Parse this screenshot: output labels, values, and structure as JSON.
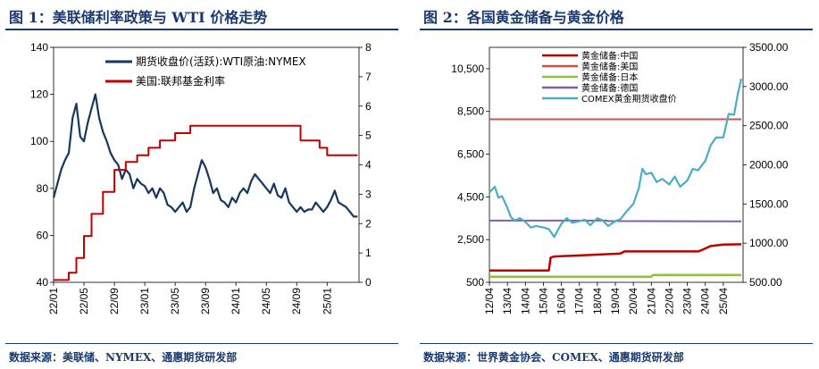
{
  "fig1": {
    "title": "图 1：美联储利率政策与 WTI 价格走势",
    "source": "数据来源：美联储、NYMEX、通惠期货研发部"
  },
  "fig2": {
    "title": "图 2：各国黄金储备与黄金价格",
    "source": "数据来源：世界黄金协会、COMEX、通惠期货研发部"
  },
  "chart_data": [
    {
      "type": "line",
      "title": "图 1：美联储利率政策与 WTI 价格走势",
      "x_tick_labels": [
        "22/01",
        "22/05",
        "22/09",
        "23/01",
        "23/05",
        "23/09",
        "24/01",
        "24/05",
        "24/09",
        "25/01"
      ],
      "y_left": {
        "range": [
          40,
          140
        ],
        "ticks": [
          40,
          60,
          80,
          100,
          120,
          140
        ]
      },
      "y_right": {
        "range": [
          0,
          8
        ],
        "ticks": [
          0,
          1,
          2,
          3,
          4,
          5,
          6,
          7,
          8
        ]
      },
      "legend_position": "top-right",
      "grid": false,
      "series": [
        {
          "name": "期货收盘价(活跃):WTI原油:NYMEX",
          "axis": "left",
          "color": "#17375e",
          "x": [
            0,
            0.5,
            1,
            1.5,
            2,
            2.5,
            3,
            3.5,
            4,
            4.5,
            5,
            5.5,
            6,
            6.5,
            7,
            7.5,
            8,
            8.5,
            9,
            9.5,
            10,
            10.5,
            11,
            11.5,
            12,
            12.5,
            13,
            13.5,
            14,
            14.5,
            15,
            15.5,
            16,
            16.5,
            17,
            17.5,
            18,
            18.5,
            19,
            19.5,
            20,
            20.5,
            21,
            21.5,
            22,
            22.5,
            23,
            23.5,
            24,
            24.5,
            25,
            25.5,
            26,
            26.5,
            27,
            27.5,
            28,
            28.5,
            29,
            29.5,
            30,
            30.5,
            31,
            31.5,
            32,
            32.5,
            33,
            33.5,
            34,
            34.5,
            35,
            35.5,
            36,
            36.5,
            37,
            37.5,
            38,
            38.5,
            39,
            39.5,
            40
          ],
          "values": [
            76,
            82,
            88,
            92,
            95,
            110,
            116,
            102,
            100,
            108,
            114,
            120,
            110,
            104,
            100,
            95,
            92,
            90,
            84,
            88,
            86,
            80,
            84,
            82,
            81,
            78,
            80,
            76,
            80,
            78,
            73,
            72,
            70,
            72,
            74,
            70,
            72,
            80,
            86,
            92,
            89,
            84,
            78,
            80,
            75,
            74,
            72,
            76,
            74,
            78,
            80,
            78,
            83,
            86,
            84,
            82,
            80,
            78,
            82,
            77,
            76,
            80,
            74,
            72,
            70,
            72,
            70,
            71,
            71,
            74,
            72,
            70,
            72,
            75,
            79,
            74,
            73,
            72,
            70,
            68,
            68
          ]
        },
        {
          "name": "美国:联邦基金利率",
          "axis": "right",
          "color": "#c00000",
          "x": [
            0,
            2.0,
            2.0,
            3.0,
            3.0,
            4.0,
            4.0,
            5.0,
            5.0,
            6.5,
            6.5,
            8.0,
            8.0,
            9.5,
            9.5,
            11.0,
            11.0,
            12.5,
            12.5,
            14.0,
            14.0,
            16.0,
            16.0,
            18.0,
            18.0,
            20.5,
            20.5,
            25.5,
            25.5,
            26.0,
            26.0,
            27.0,
            27.0,
            28.0,
            28.0,
            30.0,
            30.0,
            31.5,
            31.5,
            32.5,
            32.5,
            35.0,
            35.0,
            36.0,
            36.0,
            40.0
          ],
          "values": [
            0.08,
            0.08,
            0.33,
            0.33,
            0.83,
            0.83,
            1.58,
            1.58,
            2.33,
            2.33,
            3.08,
            3.08,
            3.83,
            3.83,
            4.1,
            4.1,
            4.33,
            4.33,
            4.58,
            4.58,
            4.83,
            4.83,
            5.08,
            5.08,
            5.33,
            5.33,
            5.33,
            5.33,
            5.33,
            5.33,
            5.33,
            5.33,
            5.33,
            5.33,
            5.33,
            5.33,
            5.33,
            5.33,
            5.33,
            5.33,
            4.83,
            4.83,
            4.58,
            4.58,
            4.33,
            4.33
          ]
        }
      ]
    },
    {
      "type": "line",
      "title": "图 2：各国黄金储备与黄金价格",
      "x_tick_labels": [
        "12/04",
        "13/04",
        "14/04",
        "15/04",
        "16/04",
        "17/04",
        "18/04",
        "19/04",
        "20/04",
        "21/04",
        "22/04",
        "23/04",
        "24/04",
        "25/04"
      ],
      "y_left": {
        "range": [
          500,
          11500
        ],
        "ticks_labels": [
          "500",
          "2,500",
          "4,500",
          "6,500",
          "8,500",
          "10,500"
        ]
      },
      "y_right": {
        "range": [
          500,
          3500
        ],
        "ticks_labels": [
          "500.00",
          "1000.00",
          "1500.00",
          "2000.00",
          "2500.00",
          "3000.00",
          "3500.00"
        ]
      },
      "legend_position": "top-left",
      "grid": false,
      "series": [
        {
          "name": "黄金储备:中国",
          "axis": "left",
          "color": "#c00000",
          "x": [
            0,
            3.3,
            3.4,
            3.6,
            7.2,
            7.3,
            7.5,
            11.6,
            11.8,
            12.3,
            13.0,
            14.0
          ],
          "values": [
            1054,
            1054,
            1658,
            1708,
            1843,
            1854,
            1948,
            1948,
            2011,
            2200,
            2264,
            2280
          ]
        },
        {
          "name": "黄金储备:美国",
          "axis": "left",
          "color": "#d0504a",
          "x": [
            0,
            14.0
          ],
          "values": [
            8133,
            8133
          ]
        },
        {
          "name": "黄金储备:日本",
          "axis": "left",
          "color": "#8fc040",
          "x": [
            0,
            9.0,
            9.1,
            14.0
          ],
          "values": [
            765,
            765,
            846,
            846
          ]
        },
        {
          "name": "黄金储备:德国",
          "axis": "left",
          "color": "#7f5fa8",
          "x": [
            0,
            6.5,
            6.6,
            14.0
          ],
          "values": [
            3391,
            3391,
            3370,
            3352
          ]
        },
        {
          "name": "COMEX黄金期货收盘价",
          "axis": "right",
          "color": "#4bacc6",
          "x": [
            0,
            0.3,
            0.5,
            0.7,
            1.0,
            1.2,
            1.4,
            1.7,
            2.0,
            2.3,
            2.6,
            3.0,
            3.3,
            3.6,
            4.0,
            4.3,
            4.6,
            5.0,
            5.3,
            5.6,
            6.0,
            6.3,
            6.6,
            7.0,
            7.3,
            7.6,
            8.0,
            8.3,
            8.5,
            8.7,
            9.0,
            9.3,
            9.6,
            10.0,
            10.3,
            10.6,
            11.0,
            11.3,
            11.6,
            12.0,
            12.3,
            12.6,
            13.0,
            13.3,
            13.6,
            13.8,
            14.0
          ],
          "values": [
            1650,
            1720,
            1580,
            1600,
            1450,
            1330,
            1290,
            1320,
            1270,
            1200,
            1220,
            1200,
            1180,
            1080,
            1250,
            1320,
            1260,
            1280,
            1300,
            1230,
            1320,
            1290,
            1220,
            1280,
            1310,
            1400,
            1500,
            1700,
            1950,
            1880,
            1900,
            1780,
            1820,
            1750,
            1850,
            1720,
            1800,
            1950,
            1930,
            2050,
            2250,
            2350,
            2350,
            2650,
            2640,
            2900,
            3100
          ]
        }
      ]
    }
  ]
}
